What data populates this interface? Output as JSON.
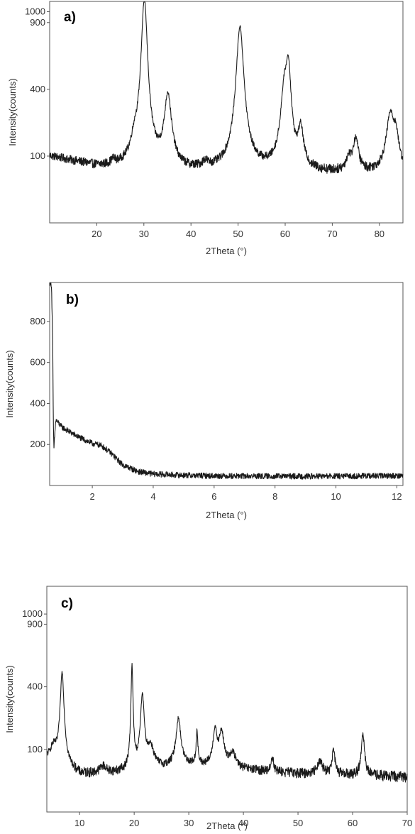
{
  "chart_data": [
    {
      "type": "line",
      "panel_label": "a)",
      "xlabel": "2Theta (°)",
      "ylabel": "Intensity(counts)",
      "xlim": [
        10,
        85
      ],
      "x_ticks": [
        20,
        30,
        40,
        50,
        60,
        70,
        80
      ],
      "y_ticks": [
        100,
        400,
        900,
        1000
      ],
      "y_scale": "sqrt",
      "y_ref": [
        0,
        1100
      ],
      "baseline": 60,
      "noise": 12,
      "background": [
        [
          10,
          100
        ],
        [
          20,
          70
        ],
        [
          28,
          62
        ],
        [
          40,
          58
        ],
        [
          55,
          60
        ],
        [
          70,
          55
        ],
        [
          85,
          55
        ]
      ],
      "peaks": [
        {
          "x": 23.5,
          "height": 12,
          "width": 0.8
        },
        {
          "x": 28.0,
          "height": 60,
          "width": 1.2
        },
        {
          "x": 30.1,
          "height": 1050,
          "width": 1.1
        },
        {
          "x": 35.1,
          "height": 300,
          "width": 1.2
        },
        {
          "x": 43.0,
          "height": 15,
          "width": 1.0
        },
        {
          "x": 50.4,
          "height": 800,
          "width": 1.3
        },
        {
          "x": 59.8,
          "height": 300,
          "width": 1.2
        },
        {
          "x": 60.7,
          "height": 420,
          "width": 0.9
        },
        {
          "x": 63.3,
          "height": 130,
          "width": 0.9
        },
        {
          "x": 73.5,
          "height": 35,
          "width": 1.0
        },
        {
          "x": 75.0,
          "height": 100,
          "width": 0.9
        },
        {
          "x": 82.3,
          "height": 200,
          "width": 1.3
        },
        {
          "x": 83.5,
          "height": 100,
          "width": 1.0
        }
      ]
    },
    {
      "type": "line",
      "panel_label": "b)",
      "xlabel": "2Theta (°)",
      "ylabel": "Intensity(counts)",
      "xlim": [
        0.6,
        12.2
      ],
      "x_ticks": [
        2,
        4,
        6,
        8,
        10,
        12
      ],
      "y_ticks": [
        200,
        400,
        600,
        800
      ],
      "y_scale": "linear",
      "y_ref": [
        0,
        990
      ],
      "noise": 14,
      "series_points": [
        [
          0.6,
          990
        ],
        [
          0.66,
          980
        ],
        [
          0.7,
          700
        ],
        [
          0.72,
          300
        ],
        [
          0.74,
          180
        ],
        [
          0.8,
          320
        ],
        [
          1.0,
          285
        ],
        [
          1.5,
          240
        ],
        [
          2.0,
          205
        ],
        [
          2.3,
          195
        ],
        [
          2.6,
          160
        ],
        [
          3.0,
          100
        ],
        [
          3.5,
          68
        ],
        [
          4.0,
          56
        ],
        [
          5.0,
          50
        ],
        [
          6.0,
          47
        ],
        [
          8.0,
          45
        ],
        [
          10.0,
          45
        ],
        [
          12.2,
          48
        ]
      ]
    },
    {
      "type": "line",
      "panel_label": "c)",
      "xlabel": "2Theta (°)",
      "ylabel": "Intensity(counts)",
      "xlim": [
        4,
        70
      ],
      "x_ticks": [
        10,
        20,
        30,
        40,
        50,
        60,
        70
      ],
      "y_ticks": [
        100,
        400,
        900,
        1000
      ],
      "y_scale": "sqrt",
      "y_ref": [
        0,
        1300
      ],
      "noise": 10,
      "background": [
        [
          4,
          70
        ],
        [
          10,
          35
        ],
        [
          20,
          40
        ],
        [
          30,
          55
        ],
        [
          40,
          45
        ],
        [
          50,
          38
        ],
        [
          60,
          35
        ],
        [
          70,
          32
        ]
      ],
      "peaks": [
        {
          "x": 5.2,
          "height": 40,
          "width": 1.0
        },
        {
          "x": 6.8,
          "height": 440,
          "width": 0.55
        },
        {
          "x": 14.3,
          "height": 15,
          "width": 1.0
        },
        {
          "x": 19.6,
          "height": 500,
          "width": 0.3
        },
        {
          "x": 21.5,
          "height": 300,
          "width": 0.55
        },
        {
          "x": 23.0,
          "height": 60,
          "width": 1.0
        },
        {
          "x": 28.1,
          "height": 170,
          "width": 0.7
        },
        {
          "x": 31.5,
          "height": 110,
          "width": 0.25
        },
        {
          "x": 34.8,
          "height": 120,
          "width": 0.6
        },
        {
          "x": 36.0,
          "height": 110,
          "width": 0.7
        },
        {
          "x": 38.0,
          "height": 40,
          "width": 1.0
        },
        {
          "x": 45.3,
          "height": 35,
          "width": 0.4
        },
        {
          "x": 54.0,
          "height": 30,
          "width": 0.8
        },
        {
          "x": 56.5,
          "height": 65,
          "width": 0.4
        },
        {
          "x": 61.9,
          "height": 120,
          "width": 0.45
        }
      ]
    }
  ]
}
